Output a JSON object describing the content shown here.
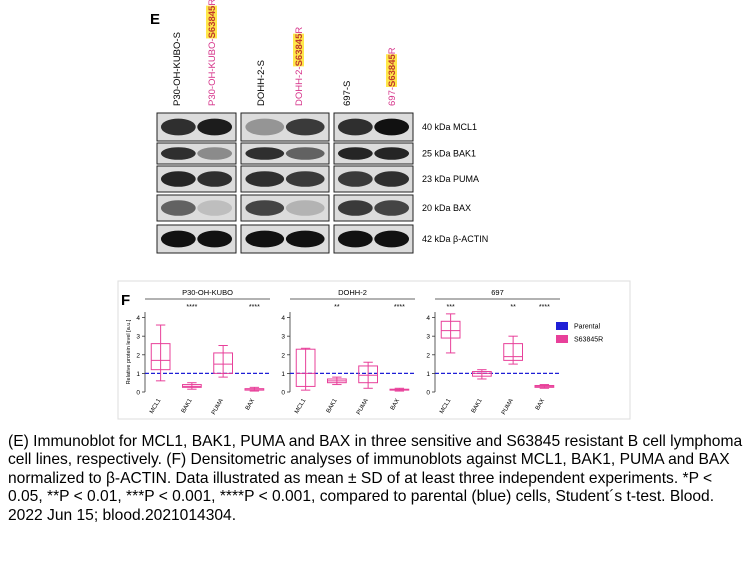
{
  "panel_e": {
    "label": "E",
    "lanes": [
      {
        "prefix": "P30-OH-KUBO-S",
        "color": "#000000"
      },
      {
        "prefix": "P30-OH-KUBO-",
        "highlight": "S63845",
        "suffix": "R",
        "color": "#d6338a"
      },
      {
        "prefix": "DOHH-2-S",
        "color": "#000000"
      },
      {
        "prefix": "DOHH-2-",
        "highlight": "S63845",
        "suffix": "R",
        "color": "#d6338a"
      },
      {
        "prefix": "697-S",
        "color": "#000000"
      },
      {
        "prefix": "697-",
        "highlight": "S63845",
        "suffix": "R",
        "color": "#d6338a"
      }
    ],
    "bands": [
      "40 kDa MCL1",
      "25 kDa BAK1",
      "23 kDa PUMA",
      "20 kDa BAX",
      "42 kDa β-ACTIN"
    ]
  },
  "panel_f": {
    "label": "F",
    "legend": [
      {
        "name": "Parental",
        "color": "#1f1fd6"
      },
      {
        "name": "S63845R",
        "color": "#e8409a"
      }
    ]
  },
  "chart_data": [
    {
      "type": "box",
      "title": "P30-OH-KUBO",
      "ylabel": "Relative protein level [a.u.]",
      "categories": [
        "MCL1",
        "BAK1",
        "PUMA",
        "BAX"
      ],
      "annotations": [
        null,
        "****",
        null,
        "****"
      ],
      "boxes": [
        {
          "min": 0.6,
          "q1": 1.2,
          "median": 1.7,
          "q3": 2.6,
          "max": 3.6
        },
        {
          "min": 0.15,
          "q1": 0.25,
          "median": 0.3,
          "q3": 0.4,
          "max": 0.5
        },
        {
          "min": 0.8,
          "q1": 1.0,
          "median": 1.5,
          "q3": 2.1,
          "max": 2.5
        },
        {
          "min": 0.05,
          "q1": 0.1,
          "median": 0.12,
          "q3": 0.18,
          "max": 0.25
        }
      ],
      "reference_line": 1,
      "ylim": [
        0,
        4.3
      ],
      "yticks": [
        0,
        1,
        2,
        3,
        4
      ]
    },
    {
      "type": "box",
      "title": "DOHH-2",
      "ylabel": "Relative protein level [a.u.]",
      "categories": [
        "MCL1",
        "BAK1",
        "PUMA",
        "BAX"
      ],
      "annotations": [
        null,
        "**",
        null,
        "****"
      ],
      "boxes": [
        {
          "min": 0.1,
          "q1": 0.3,
          "median": 1.0,
          "q3": 2.3,
          "max": 2.35
        },
        {
          "min": 0.4,
          "q1": 0.5,
          "median": 0.6,
          "q3": 0.7,
          "max": 0.8
        },
        {
          "min": 0.2,
          "q1": 0.5,
          "median": 0.9,
          "q3": 1.4,
          "max": 1.6
        },
        {
          "min": 0.05,
          "q1": 0.1,
          "median": 0.12,
          "q3": 0.15,
          "max": 0.2
        }
      ],
      "reference_line": 1,
      "ylim": [
        0,
        4.3
      ],
      "yticks": [
        0,
        1,
        2,
        3,
        4
      ]
    },
    {
      "type": "box",
      "title": "697",
      "ylabel": "Relative protein level [a.u.]",
      "categories": [
        "MCL1",
        "BAK1",
        "PUMA",
        "BAX"
      ],
      "annotations": [
        "***",
        null,
        "**",
        "****"
      ],
      "boxes": [
        {
          "min": 2.1,
          "q1": 2.9,
          "median": 3.3,
          "q3": 3.8,
          "max": 4.2
        },
        {
          "min": 0.7,
          "q1": 0.85,
          "median": 1.0,
          "q3": 1.1,
          "max": 1.2
        },
        {
          "min": 1.5,
          "q1": 1.7,
          "median": 1.9,
          "q3": 2.6,
          "max": 3.0
        },
        {
          "min": 0.2,
          "q1": 0.25,
          "median": 0.3,
          "q3": 0.35,
          "max": 0.4
        }
      ],
      "reference_line": 1,
      "ylim": [
        0,
        4.3
      ],
      "yticks": [
        0,
        1,
        2,
        3,
        4
      ]
    }
  ],
  "caption": "(E) Immunoblot for MCL1, BAK1, PUMA and BAX in three sensitive and S63845 resistant B cell lymphoma cell lines, respectively. (F) Densitometric analyses of immunoblots against MCL1, BAK1, PUMA and BAX normalized to β-ACTIN. Data illustrated as mean ± SD of at least three independent experiments. *P < 0.05, **P < 0.01, ***P < 0.001, ****P < 0.001, compared to parental (blue) cells, Student´s t-test. Blood. 2022 Jun 15; blood.2021014304."
}
